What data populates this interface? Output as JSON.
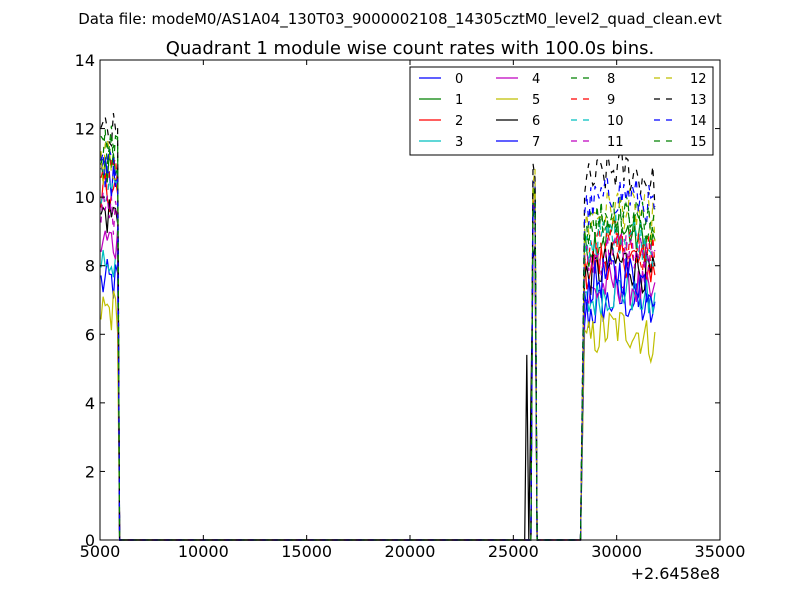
{
  "chart_data": {
    "type": "line",
    "suptitle": "Data file: modeM0/AS1A04_130T03_9000002108_14305cztM0_level2_quad_clean.evt",
    "title": "Quadrant 1 module wise count rates with 100.0s bins.",
    "xlabel": "",
    "ylabel": "",
    "x_offset_label": "+2.6458e8",
    "xlim": [
      5000,
      35000
    ],
    "ylim": [
      0,
      14
    ],
    "x_ticks": [
      "5000",
      "10000",
      "15000",
      "20000",
      "25000",
      "30000",
      "35000"
    ],
    "y_ticks": [
      "0",
      "2",
      "4",
      "6",
      "8",
      "10",
      "12",
      "14"
    ],
    "legend_location": "top-right",
    "segments": [
      {
        "x_start": 5050,
        "x_end": 5850,
        "step": 100,
        "drop_to_zero_at": 5950
      },
      {
        "x_start": 25950,
        "x_end": 26050,
        "step": 100,
        "lead_zero_at": 25850,
        "spike": {
          "x": 25650,
          "series": 6,
          "value": 5.4
        }
      },
      {
        "x_start": 28450,
        "x_end": 31850,
        "step": 100,
        "lead_zero_at": 28250
      }
    ],
    "series": [
      {
        "name": "0",
        "color": "#0000ff",
        "style": "solid",
        "levels": [
          7.5,
          10.2,
          6.5
        ]
      },
      {
        "name": "1",
        "color": "#008000",
        "style": "solid",
        "levels": [
          11.0,
          10.3,
          8.5
        ]
      },
      {
        "name": "2",
        "color": "#ff0000",
        "style": "solid",
        "levels": [
          10.0,
          9.8,
          7.8
        ]
      },
      {
        "name": "3",
        "color": "#00bfbf",
        "style": "solid",
        "levels": [
          8.2,
          9.5,
          6.8
        ]
      },
      {
        "name": "4",
        "color": "#bf00bf",
        "style": "solid",
        "levels": [
          8.7,
          9.6,
          7.0
        ]
      },
      {
        "name": "5",
        "color": "#bfbf00",
        "style": "solid",
        "levels": [
          6.7,
          10.1,
          5.7
        ]
      },
      {
        "name": "6",
        "color": "#000000",
        "style": "solid",
        "levels": [
          9.5,
          8.5,
          7.6
        ]
      },
      {
        "name": "7",
        "color": "#0000ff",
        "style": "solid",
        "levels": [
          10.5,
          9.4,
          7.3
        ]
      },
      {
        "name": "8",
        "color": "#008000",
        "style": "dashed",
        "levels": [
          11.5,
          10.4,
          9.0
        ]
      },
      {
        "name": "9",
        "color": "#ff0000",
        "style": "dashed",
        "levels": [
          10.6,
          9.7,
          8.2
        ]
      },
      {
        "name": "10",
        "color": "#00bfbf",
        "style": "dashed",
        "levels": [
          10.2,
          9.4,
          8.5
        ]
      },
      {
        "name": "11",
        "color": "#bf00bf",
        "style": "dashed",
        "levels": [
          9.5,
          9.2,
          8.0
        ]
      },
      {
        "name": "12",
        "color": "#bfbf00",
        "style": "dashed",
        "levels": [
          11.0,
          10.5,
          9.2
        ]
      },
      {
        "name": "13",
        "color": "#000000",
        "style": "dashed",
        "levels": [
          11.8,
          10.8,
          10.3
        ]
      },
      {
        "name": "14",
        "color": "#0000ff",
        "style": "dashed",
        "levels": [
          10.8,
          10.0,
          9.6
        ]
      },
      {
        "name": "15",
        "color": "#008000",
        "style": "dashed",
        "levels": [
          11.2,
          10.2,
          9.1
        ]
      }
    ]
  }
}
